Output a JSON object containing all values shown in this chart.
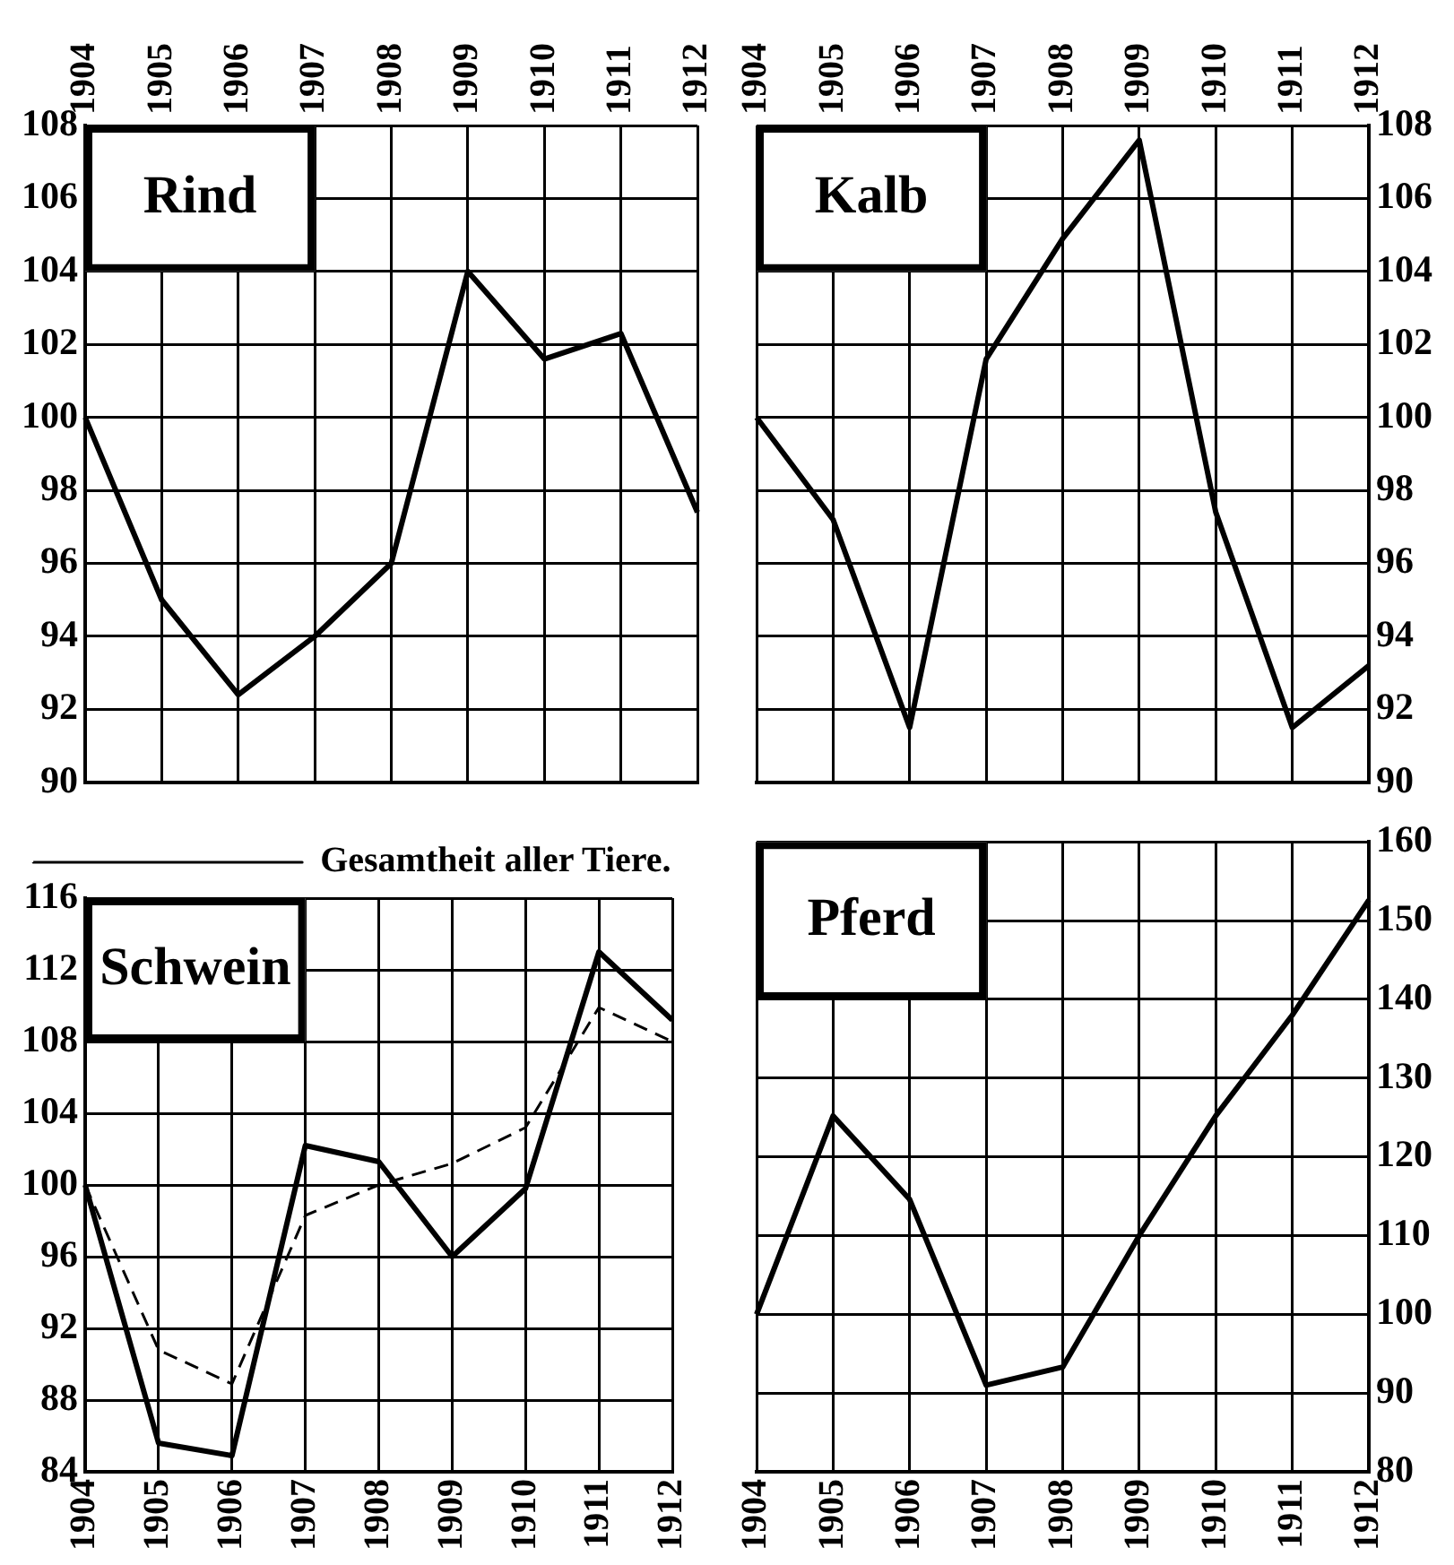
{
  "chart_data": [
    {
      "type": "line",
      "title": "Rind",
      "categories": [
        "1904",
        "1905",
        "1906",
        "1907",
        "1908",
        "1909",
        "1910",
        "1911",
        "1912"
      ],
      "series": [
        {
          "color": "#000000",
          "line_style": "solid",
          "values": [
            100,
            95,
            92.4,
            94,
            96,
            104,
            101.6,
            102.3,
            97.4
          ]
        }
      ],
      "ylim": [
        90,
        108
      ],
      "yticks": [
        90,
        92,
        94,
        96,
        98,
        100,
        102,
        104,
        106,
        108
      ],
      "grid": true,
      "marker": "none"
    },
    {
      "type": "line",
      "title": "Kalb",
      "categories": [
        "1904",
        "1905",
        "1906",
        "1907",
        "1908",
        "1909",
        "1910",
        "1911",
        "1912"
      ],
      "series": [
        {
          "color": "#000000",
          "line_style": "solid",
          "values": [
            100,
            97.2,
            91.5,
            101.6,
            104.9,
            107.6,
            97.4,
            91.5,
            93.2
          ]
        }
      ],
      "ylim": [
        90,
        108
      ],
      "yticks": [
        90,
        92,
        94,
        96,
        98,
        100,
        102,
        104,
        106,
        108
      ],
      "grid": true,
      "marker": "none"
    },
    {
      "type": "line",
      "title": "Schwein",
      "categories": [
        "1904",
        "1905",
        "1906",
        "1907",
        "1908",
        "1909",
        "1910",
        "1911",
        "1912"
      ],
      "series": [
        {
          "color": "#000000",
          "line_style": "solid",
          "values": [
            100,
            85.6,
            84.9,
            102.2,
            101.3,
            96,
            99.8,
            113,
            109.2
          ]
        },
        {
          "name": "Gesamtheit aller Tiere.",
          "color": "#000000",
          "line_style": "dashed",
          "values": [
            100,
            90.8,
            88.9,
            98.3,
            100,
            101.2,
            103.2,
            109.9,
            108
          ]
        }
      ],
      "ylim": [
        84,
        116
      ],
      "yticks": [
        84,
        88,
        92,
        96,
        100,
        104,
        108,
        112,
        116
      ],
      "grid": true,
      "marker": "none",
      "legend": "top"
    },
    {
      "type": "line",
      "title": "Pferd",
      "categories": [
        "1904",
        "1905",
        "1906",
        "1907",
        "1908",
        "1909",
        "1910",
        "1911",
        "1912"
      ],
      "series": [
        {
          "color": "#000000",
          "line_style": "solid",
          "values": [
            100,
            125.2,
            114.6,
            91,
            93.3,
            110,
            125.2,
            138,
            152.6
          ]
        }
      ],
      "ylim": [
        80,
        160
      ],
      "yticks": [
        80,
        90,
        100,
        110,
        120,
        130,
        140,
        150,
        160
      ],
      "grid": true,
      "marker": "none"
    }
  ]
}
